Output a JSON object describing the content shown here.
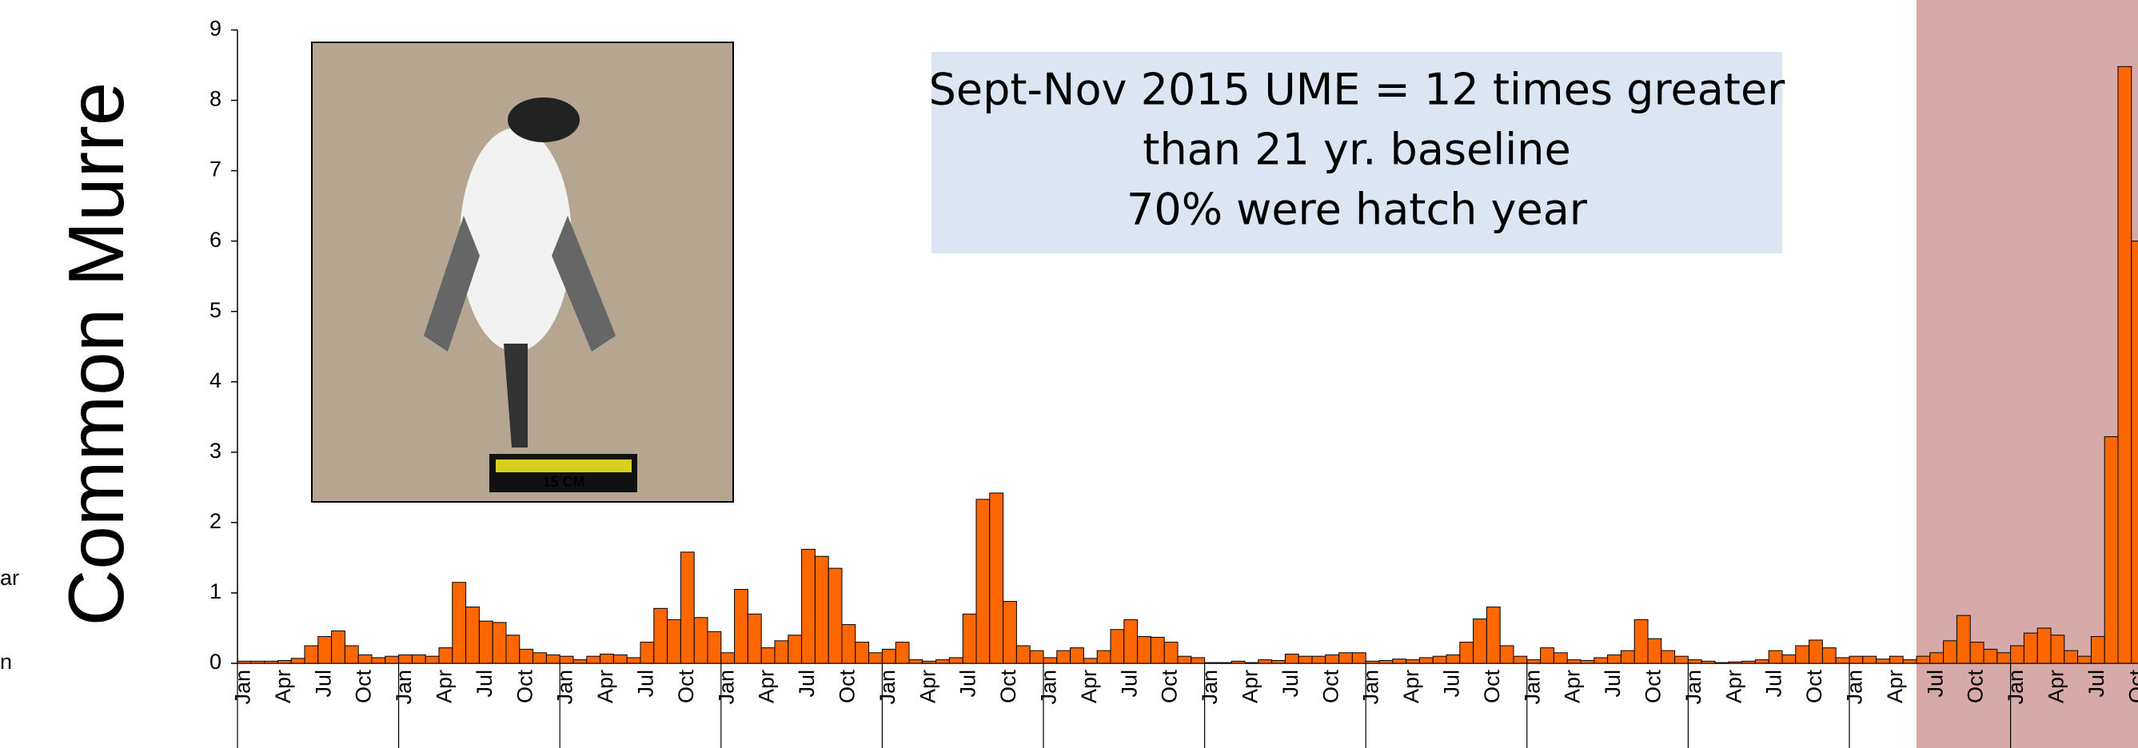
{
  "chart_data": {
    "type": "bar",
    "y_label": "Common Murre",
    "annotation": [
      "Sept-Nov 2015 UME = 12 times greater",
      "than 21 yr. baseline",
      "70% were hatch year"
    ],
    "photo_scale_label": "15 CM",
    "left_fragments": [
      "ar",
      "n"
    ],
    "categories": [
      "Jan",
      null,
      null,
      "Apr",
      null,
      null,
      "Jul",
      null,
      null,
      "Oct",
      null,
      null,
      "Jan",
      null,
      null,
      "Apr",
      null,
      null,
      "Jul",
      null,
      null,
      "Oct",
      null,
      null,
      "Jan",
      null,
      null,
      "Apr",
      null,
      null,
      "Jul",
      null,
      null,
      "Oct",
      null,
      null,
      "Jan",
      null,
      null,
      "Apr",
      null,
      null,
      "Jul",
      null,
      null,
      "Oct",
      null,
      null,
      "Jan",
      null,
      null,
      "Apr",
      null,
      null,
      "Jul",
      null,
      null,
      "Oct",
      null,
      null,
      "Jan",
      null,
      null,
      "Apr",
      null,
      null,
      "Jul",
      null,
      null,
      "Oct",
      null,
      null,
      "Jan",
      null,
      null,
      "Apr",
      null,
      null,
      "Jul",
      null,
      null,
      "Oct",
      null,
      null,
      "Jan",
      null,
      null,
      "Apr",
      null,
      null,
      "Jul",
      null,
      null,
      "Oct",
      null,
      null,
      "Jan",
      null,
      null,
      "Apr",
      null,
      null,
      "Jul",
      null,
      null,
      "Oct",
      null,
      null,
      "Jan",
      null,
      null,
      "Apr",
      null,
      null,
      "Jul",
      null,
      null,
      "Oct",
      null,
      null,
      "Jan",
      null,
      null,
      "Apr",
      null,
      null,
      "Jul",
      null,
      null,
      "Oct",
      null,
      null,
      "Jan",
      null,
      null,
      "Apr",
      null,
      null,
      "Jul",
      null,
      null,
      "Oct"
    ],
    "values": [
      0.03,
      0.03,
      0.03,
      0.04,
      0.07,
      0.25,
      0.38,
      0.46,
      0.25,
      0.12,
      0.08,
      0.1,
      0.12,
      0.12,
      0.1,
      0.22,
      1.15,
      0.8,
      0.6,
      0.58,
      0.4,
      0.2,
      0.15,
      0.12,
      0.1,
      0.05,
      0.1,
      0.13,
      0.12,
      0.08,
      0.3,
      0.78,
      0.62,
      1.58,
      0.65,
      0.45,
      0.15,
      1.05,
      0.7,
      0.22,
      0.32,
      0.4,
      1.62,
      1.52,
      1.35,
      0.55,
      0.3,
      0.15,
      0.2,
      0.3,
      0.05,
      0.03,
      0.05,
      0.08,
      0.7,
      2.33,
      2.42,
      0.88,
      0.25,
      0.18,
      0.08,
      0.18,
      0.22,
      0.07,
      0.18,
      0.48,
      0.62,
      0.38,
      0.37,
      0.3,
      0.1,
      0.08,
      0.01,
      0.01,
      0.03,
      0.01,
      0.05,
      0.04,
      0.13,
      0.1,
      0.1,
      0.12,
      0.15,
      0.15,
      0.03,
      0.04,
      0.06,
      0.05,
      0.08,
      0.1,
      0.12,
      0.3,
      0.63,
      0.8,
      0.25,
      0.1,
      0.05,
      0.22,
      0.15,
      0.05,
      0.04,
      0.08,
      0.12,
      0.18,
      0.62,
      0.35,
      0.18,
      0.1,
      0.05,
      0.03,
      0.01,
      0.02,
      0.03,
      0.05,
      0.18,
      0.12,
      0.25,
      0.33,
      0.22,
      0.08,
      0.1,
      0.1,
      0.06,
      0.1,
      0.05,
      0.1,
      0.15,
      0.32,
      0.68,
      0.3,
      0.2,
      0.15,
      0.25,
      0.43,
      0.5,
      0.4,
      0.18,
      0.1,
      0.38,
      3.22,
      8.48,
      6.0
    ],
    "color": "#fe6600",
    "highlight": {
      "from": 125,
      "color": "#d8a9a9"
    },
    "ylim": [
      0,
      9
    ],
    "yticks": [
      0,
      1,
      2,
      3,
      4,
      5,
      6,
      7,
      8,
      9
    ],
    "grid": false
  }
}
